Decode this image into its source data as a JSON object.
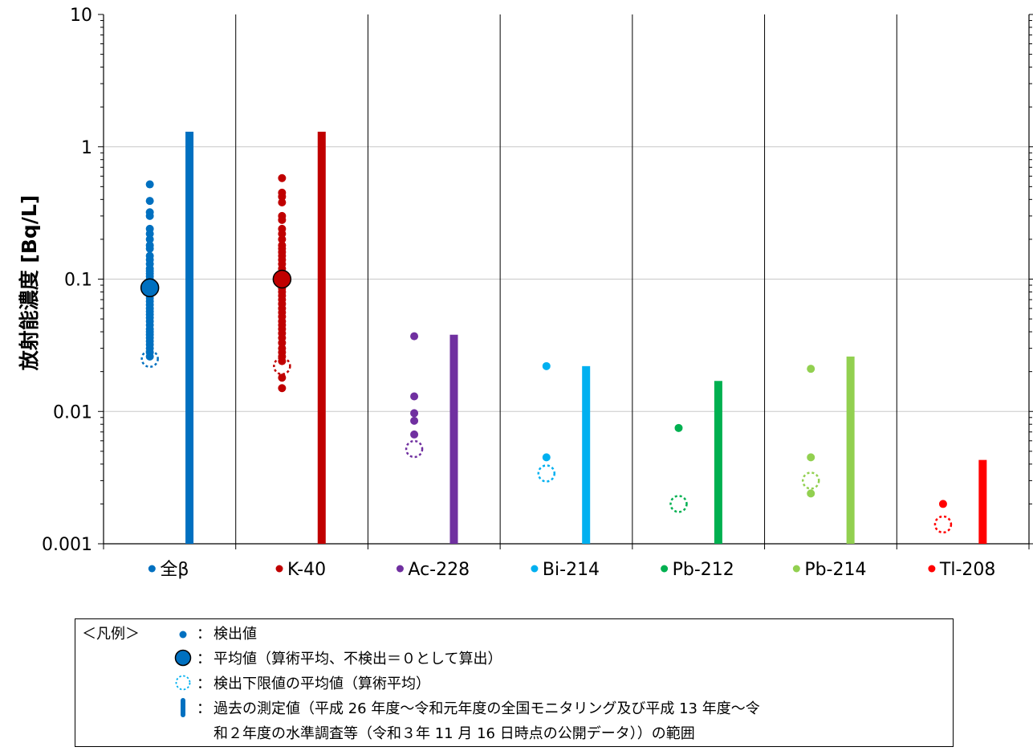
{
  "chart_data": {
    "type": "scatter",
    "ylabel": "放射能濃度 [Bq/L]",
    "yscale": "log",
    "ylim": [
      0.001,
      10
    ],
    "yticks": [
      "0.001",
      "0.01",
      "0.1",
      "1",
      "10"
    ],
    "grid": true,
    "categories": [
      "全β",
      "K-40",
      "Ac-228",
      "Bi-214",
      "Pb-212",
      "Pb-214",
      "Tl-208"
    ],
    "colors": [
      "#0070C0",
      "#C00000",
      "#7030A0",
      "#00B0F0",
      "#00B050",
      "#92D050",
      "#FF0000"
    ],
    "series": [
      {
        "name": "全β",
        "detected": [
          0.52,
          0.39,
          0.32,
          0.3,
          0.24,
          0.22,
          0.2,
          0.18,
          0.17,
          0.15,
          0.14,
          0.13,
          0.12,
          0.115,
          0.11,
          0.105,
          0.1,
          0.095,
          0.09,
          0.085,
          0.08,
          0.076,
          0.072,
          0.068,
          0.064,
          0.06,
          0.057,
          0.054,
          0.051,
          0.048,
          0.045,
          0.042,
          0.04,
          0.038,
          0.036,
          0.034,
          0.032,
          0.03,
          0.028,
          0.026
        ],
        "mean": 0.086,
        "lod_mean": 0.025,
        "past_range": [
          0.001,
          1.3
        ]
      },
      {
        "name": "K-40",
        "detected": [
          0.58,
          0.45,
          0.42,
          0.38,
          0.3,
          0.28,
          0.24,
          0.22,
          0.2,
          0.18,
          0.17,
          0.16,
          0.15,
          0.14,
          0.13,
          0.12,
          0.11,
          0.105,
          0.1,
          0.095,
          0.09,
          0.085,
          0.08,
          0.075,
          0.07,
          0.065,
          0.06,
          0.056,
          0.052,
          0.048,
          0.045,
          0.042,
          0.039,
          0.036,
          0.033,
          0.03,
          0.028,
          0.026,
          0.024,
          0.018,
          0.015
        ],
        "mean": 0.1,
        "lod_mean": 0.022,
        "past_range": [
          0.001,
          1.3
        ]
      },
      {
        "name": "Ac-228",
        "detected": [
          0.037,
          0.013,
          0.0097,
          0.0085,
          0.0067
        ],
        "lod_mean": 0.0052,
        "past_range": [
          0.001,
          0.038
        ]
      },
      {
        "name": "Bi-214",
        "detected": [
          0.022,
          0.0045
        ],
        "lod_mean": 0.0034,
        "past_range": [
          0.001,
          0.022
        ]
      },
      {
        "name": "Pb-212",
        "detected": [
          0.0075
        ],
        "lod_mean": 0.002,
        "past_range": [
          0.001,
          0.017
        ]
      },
      {
        "name": "Pb-214",
        "detected": [
          0.021,
          0.0045,
          0.0024
        ],
        "lod_mean": 0.003,
        "past_range": [
          0.001,
          0.026
        ]
      },
      {
        "name": "Tl-208",
        "detected": [
          0.002
        ],
        "lod_mean": 0.0014,
        "past_range": [
          0.001,
          0.0043
        ]
      }
    ]
  },
  "legend": {
    "title": "＜凡例＞",
    "colon": "：",
    "items": [
      {
        "key": "detected",
        "label": "検出値"
      },
      {
        "key": "mean",
        "label": "平均値（算術平均、不検出＝０として算出）"
      },
      {
        "key": "lod",
        "label": "検出下限値の平均値（算術平均）"
      },
      {
        "key": "range",
        "label": "過去の測定値（平成 26 年度～令和元年度の全国モニタリング及び平成 13 年度～令"
      }
    ],
    "range_continuation": "和２年度の水準調査等（令和３年 11 月 16 日時点の公開データ））の範囲",
    "symbol_color": "#0070C0"
  }
}
